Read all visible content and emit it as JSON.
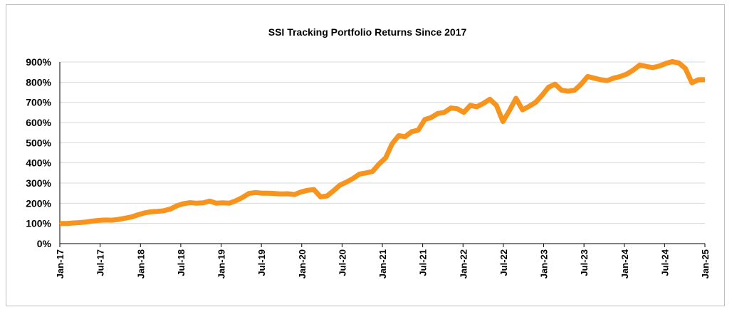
{
  "chart_data": {
    "type": "line",
    "title": "SSI Tracking Portfolio Returns Since 2017",
    "xlabel": "",
    "ylabel": "",
    "ylim": [
      0,
      900
    ],
    "y_tick_values": [
      0,
      100,
      200,
      300,
      400,
      500,
      600,
      700,
      800,
      900
    ],
    "y_tick_labels": [
      "0%",
      "100%",
      "200%",
      "300%",
      "400%",
      "500%",
      "600%",
      "700%",
      "800%",
      "900%"
    ],
    "x_tick_labels": [
      "Jan-17",
      "Jul-17",
      "Jan-18",
      "Jul-18",
      "Jan-19",
      "Jul-19",
      "Jan-20",
      "Jul-20",
      "Jan-21",
      "Jul-21",
      "Jan-22",
      "Jul-22",
      "Jan-23",
      "Jul-23",
      "Jan-24",
      "Jul-24",
      "Jan-25"
    ],
    "x_start": "2017-01",
    "x_end": "2025-01",
    "grid": true,
    "legend": false,
    "series": [
      {
        "color": "#f7941d",
        "values": [
          100,
          100,
          102,
          104,
          107,
          112,
          115,
          117,
          116,
          120,
          126,
          132,
          143,
          152,
          158,
          160,
          163,
          172,
          188,
          198,
          203,
          200,
          202,
          211,
          200,
          202,
          200,
          212,
          228,
          248,
          253,
          250,
          250,
          248,
          246,
          247,
          243,
          256,
          264,
          268,
          232,
          236,
          262,
          290,
          305,
          323,
          345,
          350,
          358,
          395,
          425,
          495,
          535,
          530,
          555,
          562,
          615,
          625,
          645,
          650,
          672,
          668,
          650,
          685,
          678,
          695,
          715,
          685,
          605,
          660,
          720,
          663,
          680,
          700,
          735,
          775,
          790,
          760,
          755,
          760,
          790,
          828,
          820,
          812,
          808,
          820,
          828,
          840,
          860,
          885,
          878,
          872,
          880,
          893,
          902,
          895,
          868,
          797,
          812,
          813
        ]
      }
    ]
  }
}
